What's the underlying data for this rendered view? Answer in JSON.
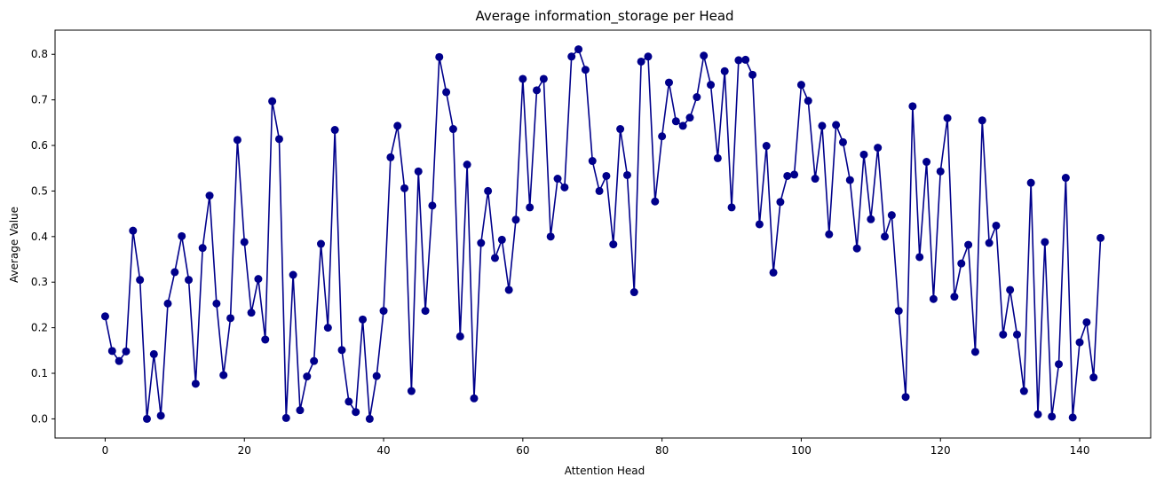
{
  "chart_data": {
    "type": "line",
    "title": "Average information_storage per Head",
    "xlabel": "Attention Head",
    "ylabel": "Average Value",
    "xlim": [
      -7.2,
      150.2
    ],
    "ylim": [
      -0.042,
      0.853
    ],
    "xticks": [
      0,
      20,
      40,
      60,
      80,
      100,
      120,
      140
    ],
    "yticks": [
      0.0,
      0.1,
      0.2,
      0.3,
      0.4,
      0.5,
      0.6,
      0.7,
      0.8
    ],
    "ytick_labels": [
      "0.0",
      "0.1",
      "0.2",
      "0.3",
      "0.4",
      "0.5",
      "0.6",
      "0.7",
      "0.8"
    ],
    "grid": false,
    "legend": "none",
    "color": "#00008b",
    "marker": "circle",
    "series": [
      {
        "x": [
          0,
          1,
          2,
          3,
          4,
          5,
          6,
          7,
          8,
          9,
          10,
          11,
          12,
          13,
          14,
          15,
          16,
          17,
          18,
          19,
          20,
          21,
          22,
          23,
          24,
          25,
          26,
          27,
          28,
          29,
          30,
          31,
          32,
          33,
          34,
          35,
          36,
          37,
          38,
          39,
          40,
          41,
          42,
          43,
          44,
          45,
          46,
          47,
          48,
          49,
          50,
          51,
          52,
          53,
          54,
          55,
          56,
          57,
          58,
          59,
          60,
          61,
          62,
          63,
          64,
          65,
          66,
          67,
          68,
          69,
          70,
          71,
          72,
          73,
          74,
          75,
          76,
          77,
          78,
          79,
          80,
          81,
          82,
          83,
          84,
          85,
          86,
          87,
          88,
          89,
          90,
          91,
          92,
          93,
          94,
          95,
          96,
          97,
          98,
          99,
          100,
          101,
          102,
          103,
          104,
          105,
          106,
          107,
          108,
          109,
          110,
          111,
          112,
          113,
          114,
          115,
          116,
          117,
          118,
          119,
          120,
          121,
          122,
          123,
          124,
          125,
          126,
          127,
          128,
          129,
          130,
          131,
          132,
          133,
          134,
          135,
          136,
          137,
          138,
          139,
          140,
          141,
          142,
          143
        ],
        "values": [
          0.225,
          0.149,
          0.127,
          0.148,
          0.413,
          0.305,
          0.0,
          0.142,
          0.007,
          0.253,
          0.322,
          0.401,
          0.305,
          0.077,
          0.375,
          0.49,
          0.253,
          0.096,
          0.221,
          0.612,
          0.388,
          0.233,
          0.307,
          0.174,
          0.697,
          0.614,
          0.002,
          0.316,
          0.019,
          0.093,
          0.127,
          0.384,
          0.2,
          0.634,
          0.151,
          0.038,
          0.015,
          0.218,
          0.0,
          0.094,
          0.237,
          0.574,
          0.643,
          0.506,
          0.061,
          0.543,
          0.237,
          0.468,
          0.794,
          0.717,
          0.636,
          0.181,
          0.558,
          0.045,
          0.386,
          0.5,
          0.353,
          0.393,
          0.283,
          0.437,
          0.746,
          0.464,
          0.721,
          0.746,
          0.4,
          0.527,
          0.508,
          0.795,
          0.811,
          0.766,
          0.566,
          0.5,
          0.533,
          0.383,
          0.636,
          0.535,
          0.278,
          0.784,
          0.795,
          0.477,
          0.62,
          0.738,
          0.653,
          0.643,
          0.661,
          0.706,
          0.797,
          0.733,
          0.572,
          0.763,
          0.464,
          0.787,
          0.788,
          0.755,
          0.427,
          0.599,
          0.321,
          0.476,
          0.533,
          0.536,
          0.733,
          0.698,
          0.527,
          0.643,
          0.405,
          0.645,
          0.607,
          0.524,
          0.374,
          0.58,
          0.438,
          0.595,
          0.4,
          0.447,
          0.237,
          0.048,
          0.686,
          0.355,
          0.564,
          0.263,
          0.543,
          0.66,
          0.268,
          0.341,
          0.382,
          0.147,
          0.655,
          0.386,
          0.424,
          0.185,
          0.283,
          0.185,
          0.061,
          0.518,
          0.01,
          0.388,
          0.005,
          0.12,
          0.529,
          0.003,
          0.168,
          0.212,
          0.091,
          0.397
        ]
      }
    ]
  }
}
